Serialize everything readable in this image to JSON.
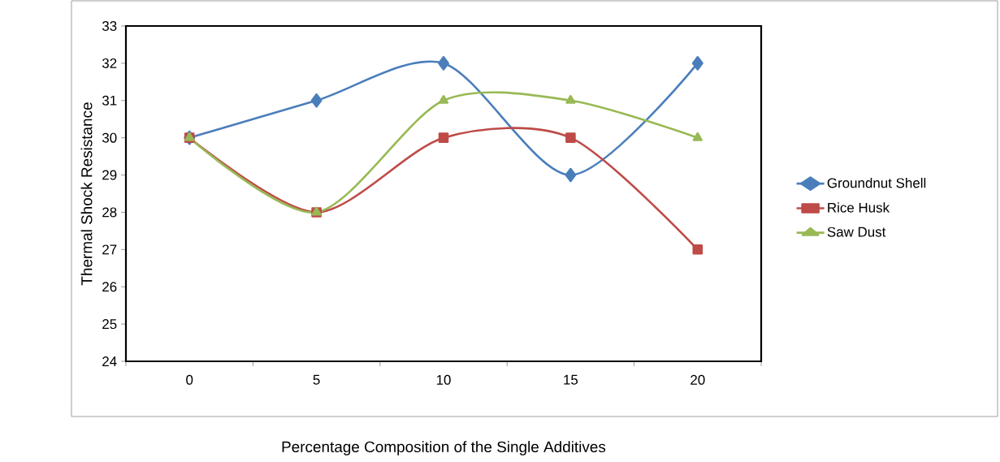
{
  "chart_data": {
    "type": "line",
    "xlabel": "Percentage Composition of the Single Additives",
    "ylabel": "Thermal Shock Resistance",
    "categories": [
      "0",
      "5",
      "10",
      "15",
      "20"
    ],
    "series": [
      {
        "name": "Groundnut Shell",
        "color": "#4a7ebb",
        "marker": "diamond",
        "values": [
          30,
          31,
          32,
          29,
          32
        ]
      },
      {
        "name": "Rice Husk",
        "color": "#be4b48",
        "marker": "square",
        "values": [
          30,
          28,
          30,
          30,
          27
        ]
      },
      {
        "name": "Saw Dust",
        "color": "#98b954",
        "marker": "triangle",
        "values": [
          30,
          28,
          31,
          31,
          30
        ]
      }
    ],
    "ylim": [
      24,
      33
    ],
    "yticks": [
      24,
      25,
      26,
      27,
      28,
      29,
      30,
      31,
      32,
      33
    ],
    "legend": "right"
  }
}
